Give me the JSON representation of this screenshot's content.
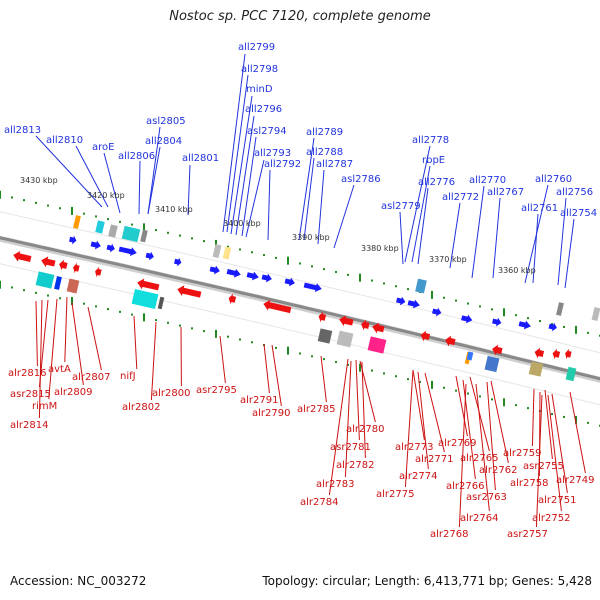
{
  "title": "Nostoc sp. PCC 7120, complete genome",
  "footer": {
    "accession": "Accession: NC_003272",
    "topology": "Topology: circular; Length: 6,413,771 bp; Genes: 5,428"
  },
  "colors": {
    "forward_gene": "#1a1aff",
    "reverse_gene": "#ee1111",
    "top_label": "#2233dd",
    "bottom_label": "#cc1111",
    "backbone": "#888888",
    "tick": "#228822"
  },
  "positions": [
    "3430 kbp",
    "3420 kbp",
    "3410 kbp",
    "3400 kbp",
    "3390 kbp",
    "3380 kbp",
    "3370 kbp",
    "3360 kbp"
  ],
  "top_labels": [
    "all2813",
    "all2810",
    "aroE",
    "all2806",
    "all2804",
    "asl2805",
    "all2801",
    "all2799",
    "all2798",
    "minD",
    "all2796",
    "asl2794",
    "all2793",
    "all2792",
    "all2789",
    "all2788",
    "all2787",
    "asl2786",
    "all2778",
    "rbpE",
    "all2776",
    "asl2779",
    "all2772",
    "all2770",
    "all2767",
    "all2760",
    "all2761",
    "all2756",
    "all2754"
  ],
  "bottom_labels": [
    "alr2816",
    "avtA",
    "asr2815",
    "rimM",
    "alr2809",
    "alr2807",
    "alr2814",
    "nifJ",
    "alr2802",
    "alr2800",
    "asr2795",
    "alr2791",
    "alr2790",
    "alr2785",
    "alr2780",
    "asr2781",
    "alr2782",
    "alr2783",
    "alr2784",
    "alr2773",
    "alr2771",
    "alr2774",
    "alr2775",
    "alr2769",
    "alr2765",
    "alr2766",
    "alr2762",
    "asr2763",
    "alr2764",
    "alr2768",
    "alr2759",
    "asr2755",
    "alr2758",
    "alr2749",
    "alr2751",
    "alr2752",
    "asr2757"
  ]
}
